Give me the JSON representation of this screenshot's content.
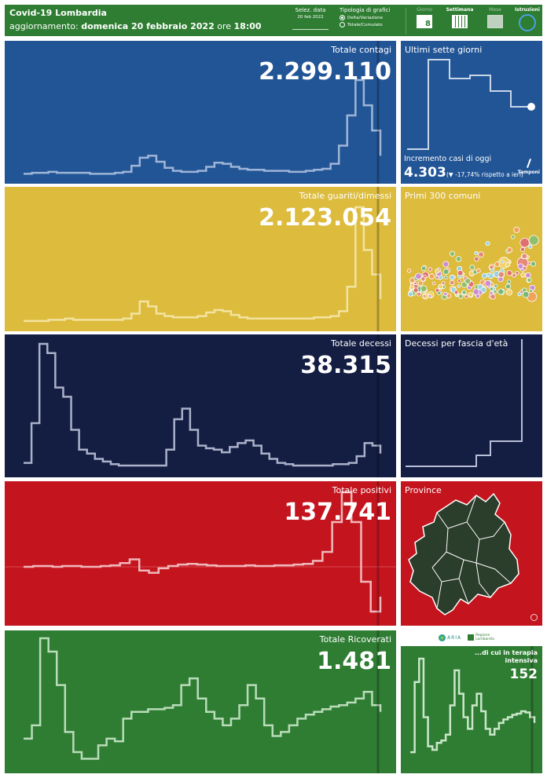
{
  "header": {
    "title": "Covid-19 Lombardia",
    "update_prefix": "aggiornamento:",
    "update_date": "domenica 20 febbraio 2022",
    "update_mid": "ore",
    "update_time": "18:00",
    "date_selector": {
      "label": "Selez. data",
      "value": "20 feb 2022"
    },
    "chart_type": {
      "label": "Tipologia di grafici",
      "options": [
        "Delta/Variazione",
        "Totale/Cumulato"
      ],
      "selected": "Delta/Variazione"
    },
    "buttons": [
      {
        "label": "Giorno",
        "icon": "calendar-day-icon",
        "value": "8",
        "active": false
      },
      {
        "label": "Settimana",
        "icon": "calendar-week-icon",
        "active": true
      },
      {
        "label": "Mese",
        "icon": "calendar-month-icon",
        "active": false
      },
      {
        "label": "Istruzioni",
        "icon": "info-circle-icon",
        "active": true
      }
    ]
  },
  "panels": {
    "contagi": {
      "title": "Totale contagi",
      "value": "2.299.110",
      "color": "#225596"
    },
    "guariti": {
      "title": "Totale guariti/dimessi",
      "value": "2.123.054",
      "color": "#dcbb3d"
    },
    "decessi": {
      "title": "Totale decessi",
      "value": "38.315",
      "color": "#141d42"
    },
    "positivi": {
      "title": "Totale positivi",
      "value": "137.741",
      "color": "#c4141e"
    },
    "ricoverati": {
      "title": "Totale Ricoverati",
      "value": "1.481",
      "color": "#2f7d33"
    }
  },
  "side": {
    "seven_days": {
      "title": "Ultimi sette giorni",
      "increment_label": "Incremento casi di oggi",
      "increment_value": "4.303",
      "increment_change": "(▼ -17,74% rispetto a  ieri)",
      "tamponi_label": "Tamponi"
    },
    "comuni": {
      "title": "Primi 300 comuni"
    },
    "fasce": {
      "title": "Decessi per fascia d'età"
    },
    "province": {
      "title": "Province",
      "zoom_icon": "zoom-icon"
    },
    "terapia": {
      "title": "...di cui in terapia intensiva",
      "value": "152"
    }
  },
  "logos": {
    "aria": "ARIA",
    "regione": "Regione Lombardia"
  },
  "chart_data": [
    {
      "type": "line",
      "title": "Totale contagi",
      "series": [
        {
          "values": [
            2,
            3,
            3,
            4,
            3,
            3,
            3,
            3,
            2,
            2,
            2,
            3,
            4,
            10,
            18,
            20,
            14,
            8,
            5,
            4,
            4,
            5,
            9,
            13,
            12,
            9,
            7,
            6,
            6,
            5,
            5,
            5,
            4,
            4,
            5,
            6,
            7,
            12,
            30,
            60,
            95,
            70,
            45,
            20
          ]
        }
      ]
    },
    {
      "type": "line",
      "title": "Totale guariti/dimessi",
      "series": [
        {
          "values": [
            2,
            2,
            2,
            3,
            3,
            4,
            3,
            3,
            3,
            3,
            3,
            3,
            4,
            8,
            18,
            14,
            8,
            6,
            5,
            5,
            5,
            6,
            9,
            11,
            10,
            7,
            5,
            4,
            4,
            4,
            4,
            4,
            4,
            4,
            4,
            5,
            5,
            6,
            10,
            30,
            95,
            60,
            40,
            20
          ]
        }
      ]
    },
    {
      "type": "line",
      "title": "Totale decessi",
      "series": [
        {
          "values": [
            5,
            35,
            95,
            88,
            62,
            55,
            30,
            15,
            12,
            8,
            6,
            4,
            3,
            3,
            3,
            3,
            3,
            3,
            15,
            38,
            46,
            30,
            18,
            16,
            15,
            13,
            17,
            20,
            22,
            18,
            12,
            8,
            5,
            4,
            3,
            3,
            3,
            3,
            3,
            4,
            4,
            5,
            10,
            20,
            18,
            12
          ]
        }
      ]
    },
    {
      "type": "line",
      "title": "Totale positivi",
      "series": [
        {
          "values": [
            0,
            1,
            1,
            0,
            1,
            1,
            0,
            0,
            1,
            2,
            5,
            10,
            -5,
            -8,
            -2,
            1,
            3,
            4,
            3,
            2,
            1,
            1,
            1,
            2,
            1,
            1,
            2,
            2,
            3,
            4,
            8,
            20,
            60,
            100,
            60,
            -20,
            -60,
            -40
          ]
        }
      ]
    },
    {
      "type": "line",
      "title": "Totale Ricoverati",
      "series": [
        {
          "values": [
            20,
            30,
            95,
            85,
            60,
            25,
            10,
            5,
            5,
            15,
            20,
            18,
            35,
            40,
            40,
            42,
            42,
            43,
            45,
            60,
            65,
            50,
            40,
            35,
            30,
            35,
            45,
            60,
            50,
            30,
            22,
            25,
            30,
            35,
            38,
            40,
            42,
            44,
            45,
            47,
            50,
            55,
            45,
            40
          ]
        }
      ]
    },
    {
      "type": "line",
      "title": "...di cui in terapia intensiva",
      "series": [
        {
          "values": [
            10,
            70,
            90,
            40,
            15,
            12,
            18,
            20,
            25,
            50,
            80,
            60,
            40,
            30,
            50,
            60,
            45,
            30,
            25,
            30,
            35,
            38,
            40,
            42,
            43,
            45,
            44,
            40,
            35
          ]
        }
      ]
    }
  ]
}
